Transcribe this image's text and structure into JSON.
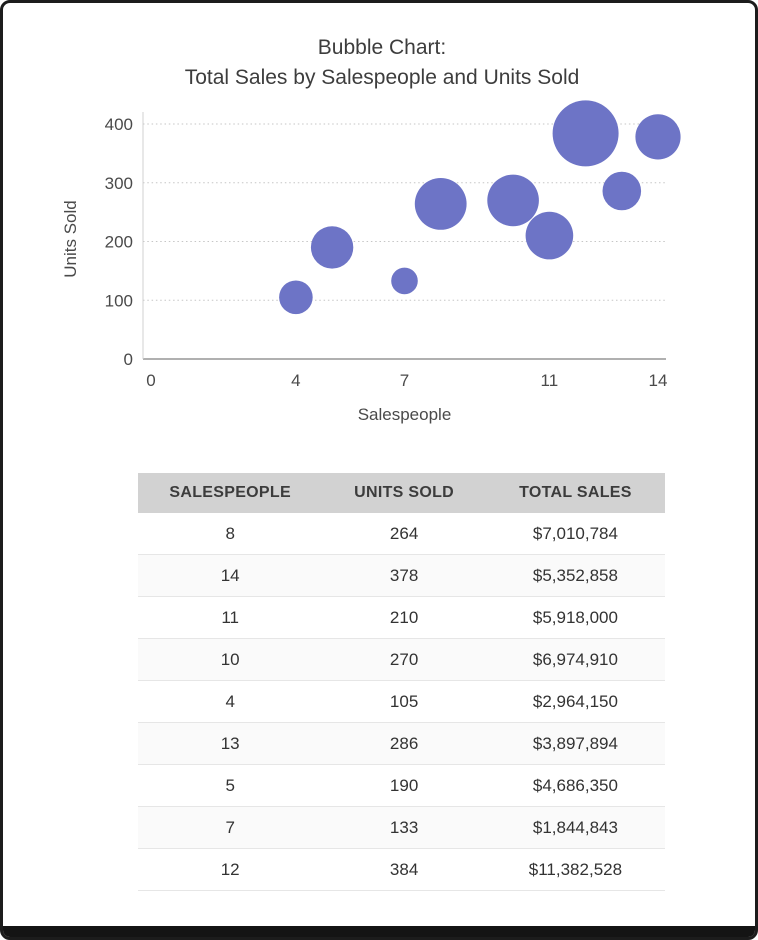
{
  "chart_data": {
    "type": "scatter",
    "subtype": "bubble",
    "title": "Bubble Chart: Total Sales by Salespeople and Units Sold",
    "title_lines": [
      "Bubble Chart:",
      "Total Sales by Salespeople and Units Sold"
    ],
    "xlabel": "Salespeople",
    "ylabel": "Units Sold",
    "xlim": [
      0,
      14
    ],
    "ylim": [
      0,
      400
    ],
    "x_ticks": [
      0,
      4,
      7,
      11,
      14
    ],
    "y_ticks": [
      0,
      100,
      200,
      300,
      400
    ],
    "grid": "horizontal-dotted",
    "legend": "none",
    "bubble_color": "#6d74c6",
    "points": [
      {
        "x": 8,
        "y": 264,
        "size": 7010784
      },
      {
        "x": 14,
        "y": 378,
        "size": 5352858
      },
      {
        "x": 11,
        "y": 210,
        "size": 5918000
      },
      {
        "x": 10,
        "y": 270,
        "size": 6974910
      },
      {
        "x": 4,
        "y": 105,
        "size": 2964150
      },
      {
        "x": 13,
        "y": 286,
        "size": 3897894
      },
      {
        "x": 5,
        "y": 190,
        "size": 4686350
      },
      {
        "x": 7,
        "y": 133,
        "size": 1844843
      },
      {
        "x": 12,
        "y": 384,
        "size": 11382528
      }
    ]
  },
  "table": {
    "columns": [
      "SALESPEOPLE",
      "UNITS SOLD",
      "TOTAL SALES"
    ],
    "rows": [
      [
        "8",
        "264",
        "$7,010,784"
      ],
      [
        "14",
        "378",
        "$5,352,858"
      ],
      [
        "11",
        "210",
        "$5,918,000"
      ],
      [
        "10",
        "270",
        "$6,974,910"
      ],
      [
        "4",
        "105",
        "$2,964,150"
      ],
      [
        "13",
        "286",
        "$3,897,894"
      ],
      [
        "5",
        "190",
        "$4,686,350"
      ],
      [
        "7",
        "133",
        "$1,844,843"
      ],
      [
        "12",
        "384",
        "$11,382,528"
      ]
    ]
  }
}
